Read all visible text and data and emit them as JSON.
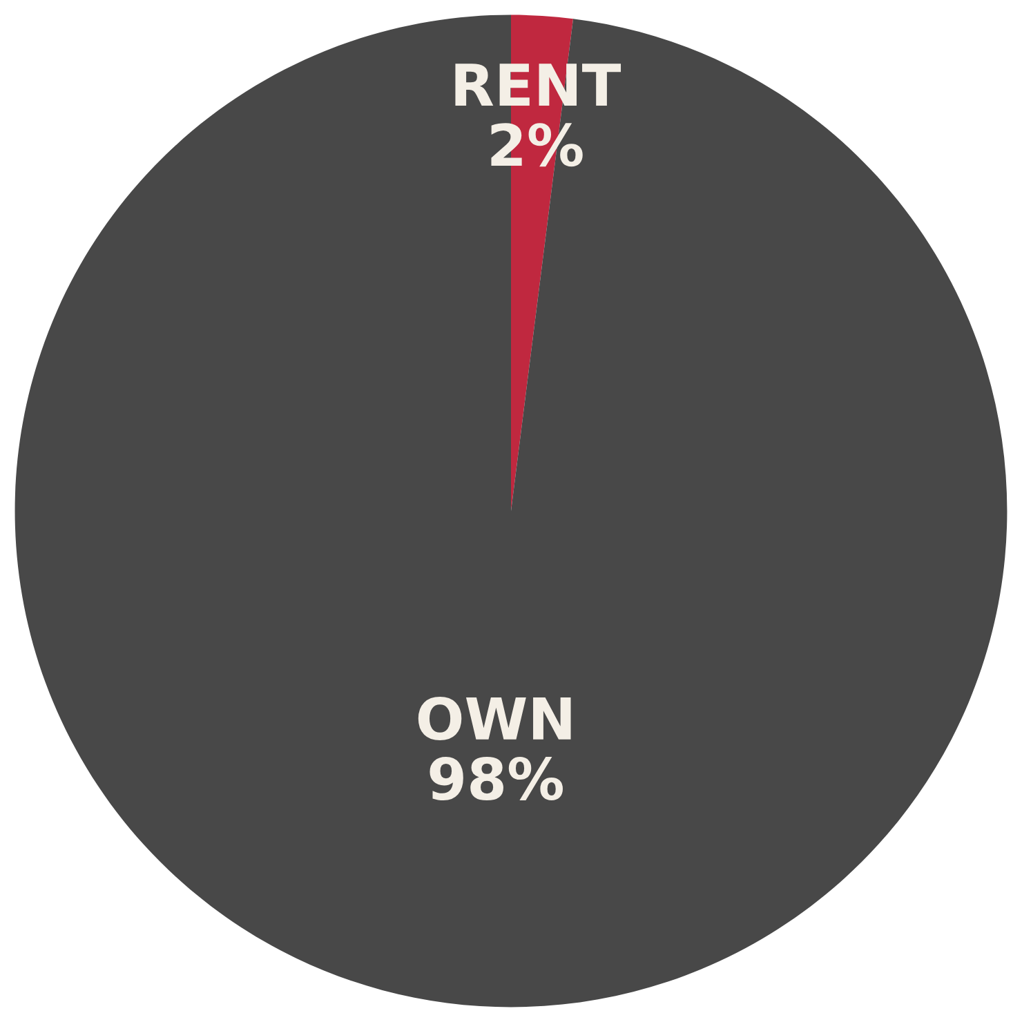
{
  "chart_data": {
    "type": "pie",
    "categories": [
      "RENT",
      "OWN"
    ],
    "values": [
      2,
      98
    ],
    "colors": [
      "#c0283f",
      "#484848"
    ],
    "value_labels": [
      "2%",
      "98%"
    ]
  }
}
